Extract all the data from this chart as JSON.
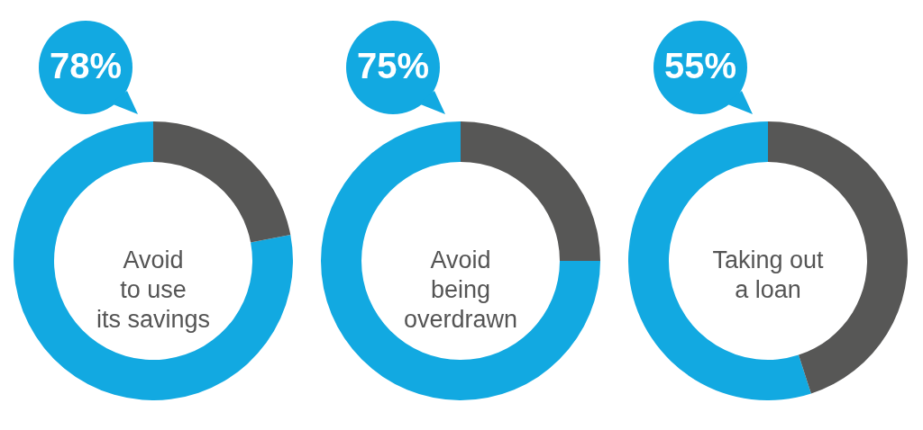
{
  "chart_data": [
    {
      "type": "donut",
      "title": "Avoid\nto use\nits savings",
      "categories": [
        null,
        null
      ],
      "values": [
        78,
        22
      ],
      "colors": [
        "#12a9e1",
        "#575756"
      ],
      "value_labels": [
        "78%",
        null
      ]
    },
    {
      "type": "donut",
      "title": "Avoid\nbeing\noverdrawn",
      "categories": [
        null,
        null
      ],
      "values": [
        75,
        25
      ],
      "colors": [
        "#12a9e1",
        "#575756"
      ],
      "value_labels": [
        "75%",
        null
      ]
    },
    {
      "type": "donut",
      "title": "Taking out\na loan",
      "categories": [
        null,
        null
      ],
      "values": [
        55,
        45
      ],
      "colors": [
        "#12a9e1",
        "#575756"
      ],
      "value_labels": [
        "55%",
        null
      ]
    }
  ]
}
